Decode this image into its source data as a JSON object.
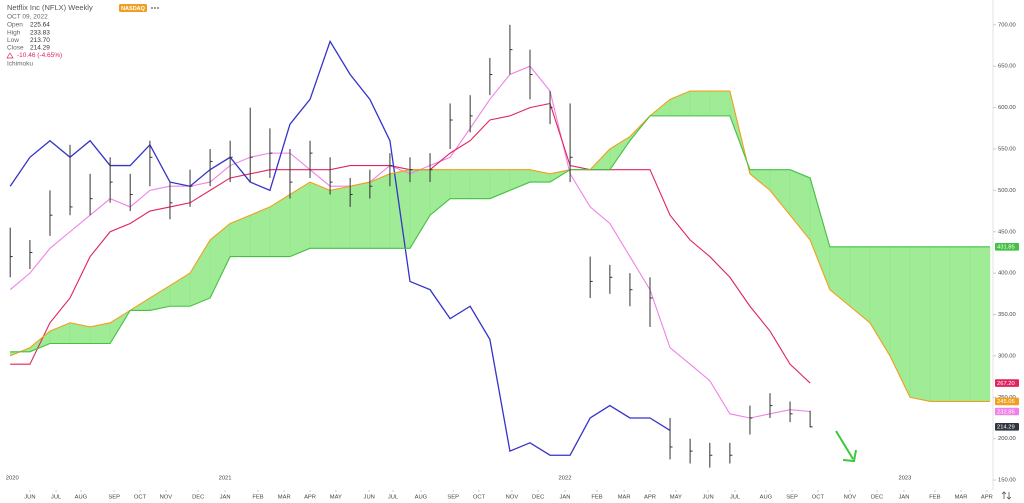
{
  "chart_data": {
    "type": "ohlc",
    "title": "Netflix Inc (NFLX) Weekly",
    "exchange": "NASDAQ",
    "date": "OCT 09, 2022",
    "ohlc_legend": [
      {
        "label": "Open",
        "value": "225.64"
      },
      {
        "label": "High",
        "value": "233.83"
      },
      {
        "label": "Low",
        "value": "213.70"
      },
      {
        "label": "Close",
        "value": "214.29"
      }
    ],
    "change": "-10.46 (-4.65%)",
    "indicator": "Ichimoku",
    "xlim": [
      2020.338,
      2023.259
    ],
    "ylim": [
      138,
      730
    ],
    "yticks": [
      {
        "value": 150,
        "label": "150.00"
      },
      {
        "value": 200,
        "label": "200.00"
      },
      {
        "value": 250,
        "label": "250.00"
      },
      {
        "value": 300,
        "label": "300.00"
      },
      {
        "value": 350,
        "label": "350.00"
      },
      {
        "value": 400,
        "label": "400.00"
      },
      {
        "value": 450,
        "label": "450.00"
      },
      {
        "value": 500,
        "label": "500.00"
      },
      {
        "value": 550,
        "label": "550.00"
      },
      {
        "value": 600,
        "label": "600.00"
      },
      {
        "value": 650,
        "label": "650.00"
      },
      {
        "value": 700,
        "label": "700.00"
      }
    ],
    "year_ticks": [
      {
        "value": 2020.374,
        "label": "2020"
      },
      2021,
      2022,
      2023
    ],
    "xticks": [
      {
        "value": 2020.426,
        "label": "JUN"
      },
      {
        "value": 2020.503,
        "label": "JUL"
      },
      {
        "value": 2020.576,
        "label": "AUG"
      },
      {
        "value": 2020.674,
        "label": "SEP"
      },
      {
        "value": 2020.75,
        "label": "OCT"
      },
      {
        "value": 2020.826,
        "label": "NOV"
      },
      {
        "value": 2020.921,
        "label": "DEC"
      },
      {
        "value": 2021.0,
        "label": "JAN"
      },
      {
        "value": 2021.097,
        "label": "FEB"
      },
      {
        "value": 2021.174,
        "label": "MAR"
      },
      {
        "value": 2021.25,
        "label": "APR"
      },
      {
        "value": 2021.326,
        "label": "MAY"
      },
      {
        "value": 2021.424,
        "label": "JUN"
      },
      {
        "value": 2021.494,
        "label": "JUL"
      },
      {
        "value": 2021.576,
        "label": "AUG"
      },
      {
        "value": 2021.671,
        "label": "SEP"
      },
      {
        "value": 2021.747,
        "label": "OCT"
      },
      {
        "value": 2021.844,
        "label": "NOV"
      },
      {
        "value": 2021.921,
        "label": "DEC"
      },
      {
        "value": 2022.0,
        "label": "JAN"
      },
      {
        "value": 2022.094,
        "label": "FEB"
      },
      {
        "value": 2022.174,
        "label": "MAR"
      },
      {
        "value": 2022.25,
        "label": "APR"
      },
      {
        "value": 2022.326,
        "label": "MAY"
      },
      {
        "value": 2022.421,
        "label": "JUN"
      },
      {
        "value": 2022.5,
        "label": "JUL"
      },
      {
        "value": 2022.591,
        "label": "AUG"
      },
      {
        "value": 2022.668,
        "label": "SEP"
      },
      {
        "value": 2022.744,
        "label": "OCT"
      },
      {
        "value": 2022.838,
        "label": "NOV"
      },
      {
        "value": 2022.918,
        "label": "DEC"
      },
      {
        "value": 2022.997,
        "label": "JAN"
      },
      {
        "value": 2023.088,
        "label": "FEB"
      },
      {
        "value": 2023.165,
        "label": "MAR"
      },
      {
        "value": 2023.241,
        "label": "APR"
      }
    ],
    "x": [
      2020.368,
      2020.426,
      2020.485,
      2020.544,
      2020.603,
      2020.662,
      2020.721,
      2020.779,
      2020.838,
      2020.897,
      2020.956,
      2021.015,
      2021.074,
      2021.132,
      2021.191,
      2021.25,
      2021.309,
      2021.368,
      2021.426,
      2021.485,
      2021.544,
      2021.603,
      2021.662,
      2021.721,
      2021.779,
      2021.838,
      2021.897,
      2021.956,
      2022.015,
      2022.074,
      2022.132,
      2022.191,
      2022.25,
      2022.309,
      2022.368,
      2022.426,
      2022.485,
      2022.544,
      2022.603,
      2022.662,
      2022.721,
      2022.779,
      2022.838,
      2022.897,
      2022.956,
      2023.015,
      2023.074,
      2023.132,
      2023.191,
      2023.25
    ],
    "price": {
      "color": "#333333",
      "label_color": "#2f3640",
      "price_label": "214.29",
      "high": [
        455,
        440,
        500,
        555,
        520,
        540,
        520,
        560,
        510,
        525,
        550,
        560,
        600,
        575,
        550,
        560,
        540,
        515,
        525,
        545,
        540,
        545,
        605,
        615,
        660,
        700,
        670,
        620,
        605,
        420,
        410,
        400,
        395,
        225,
        200,
        195,
        195,
        240,
        255,
        245,
        233.83,
        null,
        null,
        null,
        null,
        null,
        null,
        null,
        null,
        null
      ],
      "low": [
        395,
        405,
        445,
        470,
        470,
        485,
        475,
        505,
        465,
        480,
        505,
        510,
        510,
        515,
        490,
        515,
        495,
        480,
        490,
        505,
        510,
        510,
        550,
        570,
        615,
        640,
        610,
        580,
        510,
        370,
        375,
        360,
        335,
        175,
        170,
        165,
        170,
        205,
        225,
        220,
        213.7,
        null,
        null,
        null,
        null,
        null,
        null,
        null,
        null,
        null
      ],
      "close": [
        420,
        425,
        470,
        480,
        490,
        510,
        495,
        540,
        485,
        505,
        535,
        540,
        540,
        545,
        510,
        545,
        510,
        495,
        505,
        530,
        525,
        525,
        585,
        590,
        640,
        670,
        640,
        600,
        540,
        390,
        395,
        380,
        370,
        190,
        185,
        180,
        180,
        225,
        240,
        230,
        214.29,
        null,
        null,
        null,
        null,
        null,
        null,
        null,
        null,
        null
      ]
    },
    "ichimoku": {
      "cloud_color": "#8ee884",
      "lines": [
        {
          "key": "conversion",
          "color": "#ee82e6",
          "price_label": "232.85",
          "values": [
            380,
            400,
            430,
            450,
            470,
            490,
            480,
            500,
            505,
            505,
            510,
            530,
            540,
            545,
            545,
            525,
            505,
            505,
            510,
            530,
            520,
            530,
            540,
            575,
            610,
            640,
            650,
            620,
            520,
            480,
            460,
            420,
            380,
            310,
            290,
            270,
            230,
            225,
            230,
            235,
            232.85,
            null,
            null,
            null,
            null,
            null,
            null,
            null,
            null,
            null
          ]
        },
        {
          "key": "base",
          "color": "#e0245e",
          "price_label": "267.20",
          "values": [
            290,
            290,
            340,
            370,
            420,
            450,
            460,
            475,
            480,
            485,
            500,
            515,
            520,
            525,
            525,
            525,
            525,
            530,
            530,
            530,
            525,
            525,
            545,
            560,
            585,
            590,
            600,
            605,
            530,
            525,
            525,
            525,
            525,
            470,
            440,
            420,
            395,
            360,
            330,
            290,
            267.2,
            null,
            null,
            null,
            null,
            null,
            null,
            null,
            null,
            null
          ]
        },
        {
          "key": "lagging",
          "color": "#3434c8",
          "price_label": null,
          "values": [
            505,
            540,
            560,
            540,
            560,
            530,
            530,
            555,
            510,
            505,
            525,
            540,
            510,
            500,
            580,
            610,
            680,
            640,
            610,
            560,
            390,
            380,
            345,
            360,
            320,
            185,
            195,
            180,
            180,
            225,
            240,
            225,
            225,
            210,
            null,
            null,
            null,
            null,
            null,
            null,
            null,
            null,
            null,
            null,
            null,
            null,
            null,
            null,
            null,
            null
          ]
        },
        {
          "key": "span_a",
          "color": "#f0a020",
          "price_label": "245.05",
          "values": [
            300,
            310,
            330,
            340,
            335,
            340,
            355,
            370,
            385,
            400,
            440,
            460,
            470,
            480,
            495,
            510,
            500,
            505,
            510,
            520,
            525,
            525,
            525,
            525,
            525,
            525,
            525,
            520,
            525,
            525,
            550,
            565,
            590,
            610,
            620,
            620,
            620,
            520,
            500,
            470,
            440,
            380,
            360,
            340,
            300,
            250,
            245,
            245,
            245,
            245.05
          ]
        },
        {
          "key": "span_b",
          "color": "#44c044",
          "price_label": "431.85",
          "values": [
            305,
            305,
            315,
            315,
            315,
            315,
            355,
            355,
            360,
            360,
            370,
            420,
            420,
            420,
            420,
            430,
            430,
            430,
            430,
            430,
            430,
            470,
            490,
            490,
            490,
            500,
            510,
            510,
            525,
            525,
            525,
            560,
            590,
            590,
            590,
            590,
            590,
            525,
            525,
            525,
            515,
            431.85,
            431.85,
            431.85,
            431.85,
            431.85,
            431.85,
            431.85,
            431.85,
            431.85
          ]
        }
      ]
    }
  }
}
